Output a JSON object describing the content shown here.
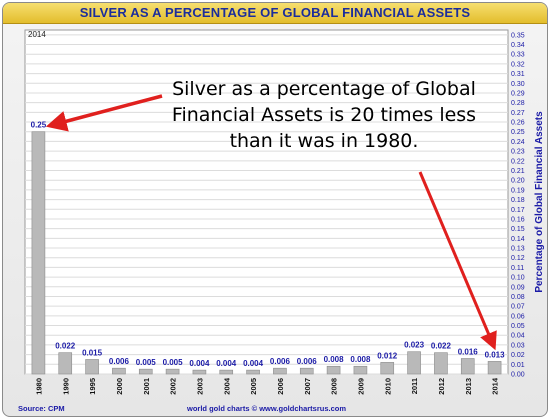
{
  "chart_data": {
    "type": "bar",
    "title": "SILVER AS A PERCENTAGE OF GLOBAL FINANCIAL ASSETS",
    "ylabel": "Percentage of Global Financial Assets",
    "xlabel": "",
    "categories": [
      "1980",
      "1990",
      "1995",
      "2000",
      "2001",
      "2002",
      "2003",
      "2004",
      "2005",
      "2006",
      "2007",
      "2008",
      "2009",
      "2010",
      "2011",
      "2012",
      "2013",
      "2014"
    ],
    "values": [
      0.25,
      0.022,
      0.015,
      0.006,
      0.005,
      0.005,
      0.004,
      0.004,
      0.004,
      0.006,
      0.006,
      0.008,
      0.008,
      0.012,
      0.023,
      0.022,
      0.016,
      0.013
    ],
    "data_labels": [
      "0.25",
      "0.022",
      "0.015",
      "0.006",
      "0.005",
      "0.005",
      "0.004",
      "0.004",
      "0.004",
      "0.006",
      "0.006",
      "0.008",
      "0.008",
      "0.012",
      "0.023",
      "0.022",
      "0.016",
      "0.013"
    ],
    "ylim": [
      0,
      0.355
    ],
    "yticks": [
      "0.00",
      "0.01",
      "0.02",
      "0.03",
      "0.04",
      "0.05",
      "0.06",
      "0.07",
      "0.08",
      "0.09",
      "0.10",
      "0.11",
      "0.12",
      "0.13",
      "0.14",
      "0.15",
      "0.16",
      "0.17",
      "0.18",
      "0.19",
      "0.20",
      "0.21",
      "0.22",
      "0.23",
      "0.24",
      "0.25",
      "0.26",
      "0.27",
      "0.28",
      "0.29",
      "0.30",
      "0.31",
      "0.32",
      "0.33",
      "0.34",
      "0.35"
    ],
    "grid": true,
    "corner_label": "2014",
    "annotation": "Silver as a percentage of Global Financial Assets is 20 times less than it was in 1980.",
    "source": "Source: CPM",
    "credit": "world gold charts © www.goldchartsrus.com"
  },
  "colors": {
    "bar": "#b9b9b9",
    "arrow": "#e0201e",
    "title_text": "#1b2d9c",
    "label_text": "#1a1aa6"
  }
}
